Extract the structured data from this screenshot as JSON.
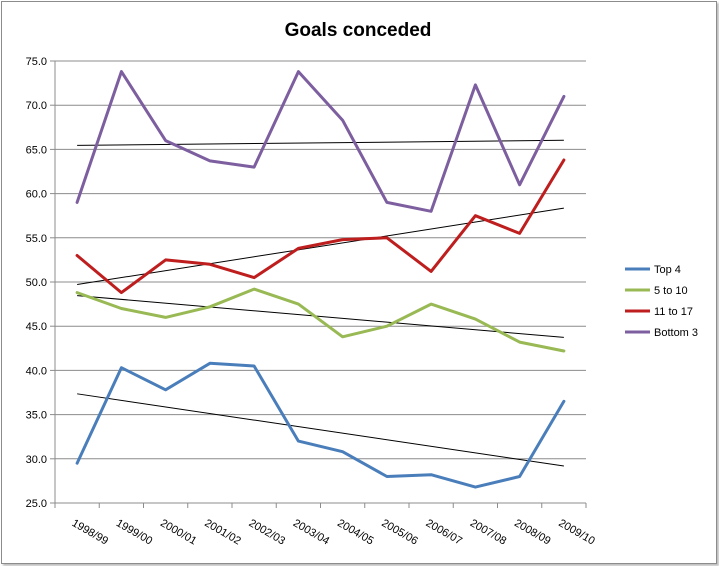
{
  "chart_data": {
    "type": "line",
    "title": "Goals conceded",
    "xlabel": "",
    "ylabel": "",
    "categories": [
      "1998/99",
      "1999/00",
      "2000/01",
      "2001/02",
      "2002/03",
      "2003/04",
      "2004/05",
      "2005/06",
      "2006/07",
      "2007/08",
      "2008/09",
      "2009/10"
    ],
    "ylim": [
      25.0,
      75.0
    ],
    "yticks": [
      "25.0",
      "30.0",
      "35.0",
      "40.0",
      "45.0",
      "50.0",
      "55.0",
      "60.0",
      "65.0",
      "70.0",
      "75.0"
    ],
    "grid": "horizontal",
    "legend_position": "right",
    "series": [
      {
        "name": "Top 4",
        "color": "#4a7ebb",
        "values": [
          29.5,
          40.3,
          37.8,
          40.8,
          40.5,
          32.0,
          30.8,
          28.0,
          28.2,
          26.8,
          28.0,
          36.5
        ]
      },
      {
        "name": "5 to 10",
        "color": "#98b954",
        "values": [
          48.8,
          47.0,
          46.0,
          47.2,
          49.2,
          47.5,
          43.8,
          45.0,
          47.5,
          45.8,
          43.2,
          42.2
        ]
      },
      {
        "name": "11 to 17",
        "color": "#be1e1e",
        "values": [
          53.0,
          48.8,
          52.5,
          52.0,
          50.5,
          53.8,
          54.8,
          55.0,
          51.2,
          57.5,
          55.5,
          63.8
        ]
      },
      {
        "name": "Bottom 3",
        "color": "#7d5fa0",
        "values": [
          59.0,
          73.8,
          66.0,
          63.7,
          63.0,
          73.8,
          68.3,
          59.0,
          58.0,
          72.3,
          61.0,
          71.0
        ]
      }
    ],
    "trendline_color": "#000000"
  }
}
